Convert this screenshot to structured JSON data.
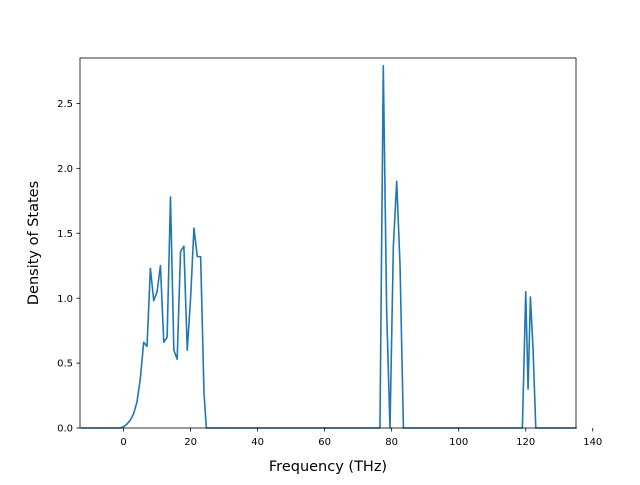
{
  "chart_data": {
    "type": "line",
    "xlabel": "Frequency (THz)",
    "ylabel": "Density of States",
    "xlim": [
      -13,
      135
    ],
    "ylim": [
      0,
      2.85
    ],
    "x_ticks": [
      0,
      20,
      40,
      60,
      80,
      100,
      120,
      140
    ],
    "y_ticks": [
      0.0,
      0.5,
      1.0,
      1.5,
      2.0,
      2.5
    ],
    "x_tick_labels": [
      "0",
      "20",
      "40",
      "60",
      "80",
      "100",
      "120",
      "140"
    ],
    "y_tick_labels": [
      "0.0",
      "0.5",
      "1.0",
      "1.5",
      "2.0",
      "2.5"
    ],
    "grid": false,
    "series": [
      {
        "color": "#1f77b4",
        "x": [
          -12.5,
          -1,
          0,
          1,
          2,
          3,
          4,
          5,
          6,
          7,
          8,
          9,
          10,
          11,
          12,
          13,
          14,
          15,
          16,
          17,
          18,
          19,
          20,
          21,
          22,
          23,
          24,
          24.7,
          25,
          76.5,
          77.5,
          78.5,
          79.5,
          80.5,
          81.5,
          82.5,
          83.5,
          84,
          119,
          120,
          120.7,
          121.4,
          122.2,
          123,
          135
        ],
        "y": [
          0,
          0,
          0.01,
          0.03,
          0.06,
          0.11,
          0.2,
          0.38,
          0.66,
          0.63,
          1.23,
          0.98,
          1.05,
          1.25,
          0.66,
          0.7,
          1.78,
          0.6,
          0.53,
          1.36,
          1.4,
          0.6,
          1.0,
          1.54,
          1.32,
          1.32,
          0.27,
          0,
          0,
          0,
          2.79,
          0.9,
          0,
          1.4,
          1.9,
          1.25,
          0,
          0,
          0,
          1.05,
          0.3,
          1.01,
          0.6,
          0,
          0
        ]
      }
    ]
  }
}
